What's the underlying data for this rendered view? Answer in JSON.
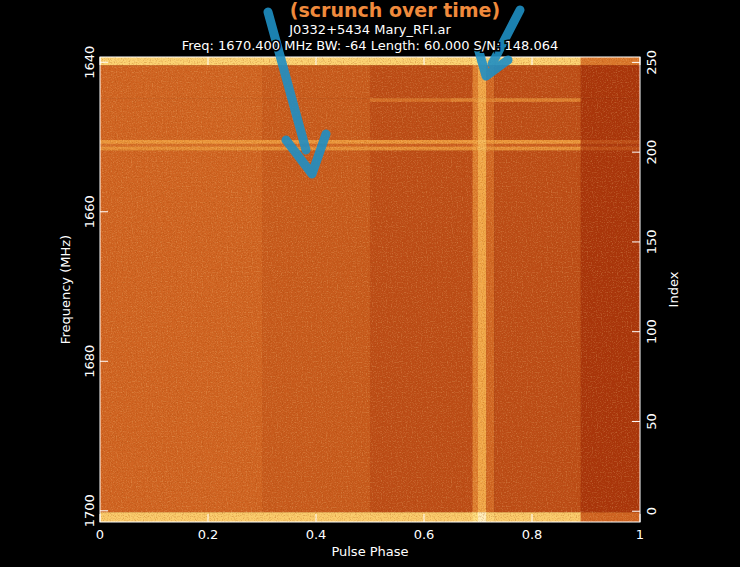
{
  "chart_data": {
    "type": "heatmap",
    "annotation": "(scrunch over time)",
    "title": "J0332+5434 Mary_RFI.ar",
    "subtitle": "Freq: 1670.400 MHz BW: -64 Length: 60.000 S/N: 148.064",
    "x_label": "Pulse Phase",
    "y_label": "Frequency (MHz)",
    "y2_label": "Index",
    "xlim": [
      0,
      1
    ],
    "xticks": [
      0,
      0.2,
      0.4,
      0.6,
      0.8,
      1
    ],
    "ylim": [
      1701.5,
      1639.3
    ],
    "yticks": [
      1640,
      1660,
      1680,
      1700
    ],
    "y2lim": [
      -6,
      253
    ],
    "y2ticks": [
      0,
      50,
      100,
      150,
      200,
      250
    ],
    "zlim": [
      0,
      1
    ],
    "x_edges": [
      0,
      0.3,
      0.5,
      0.65,
      0.69,
      0.7,
      0.715,
      0.73,
      0.89,
      1
    ],
    "y_edges": [
      1639.3,
      1640.4,
      1644.8,
      1645.3,
      1650.4,
      1650.9,
      1651.3,
      1651.8,
      1700.2,
      1701.5
    ],
    "values": [
      [
        0.82,
        0.82,
        0.82,
        0.82,
        0.85,
        0.9,
        0.83,
        0.82,
        0.6
      ],
      [
        0.55,
        0.53,
        0.5,
        0.5,
        0.62,
        0.72,
        0.56,
        0.5,
        0.45
      ],
      [
        0.55,
        0.53,
        0.58,
        0.62,
        0.66,
        0.74,
        0.62,
        0.62,
        0.45
      ],
      [
        0.55,
        0.53,
        0.5,
        0.5,
        0.62,
        0.72,
        0.56,
        0.5,
        0.45
      ],
      [
        0.68,
        0.68,
        0.68,
        0.68,
        0.7,
        0.76,
        0.68,
        0.68,
        0.5
      ],
      [
        0.58,
        0.56,
        0.54,
        0.54,
        0.64,
        0.73,
        0.58,
        0.54,
        0.46
      ],
      [
        0.66,
        0.66,
        0.66,
        0.66,
        0.7,
        0.76,
        0.66,
        0.66,
        0.5
      ],
      [
        0.55,
        0.53,
        0.5,
        0.5,
        0.62,
        0.72,
        0.56,
        0.5,
        0.45
      ],
      [
        0.8,
        0.8,
        0.8,
        0.8,
        0.85,
        0.92,
        0.82,
        0.8,
        0.55
      ]
    ]
  }
}
